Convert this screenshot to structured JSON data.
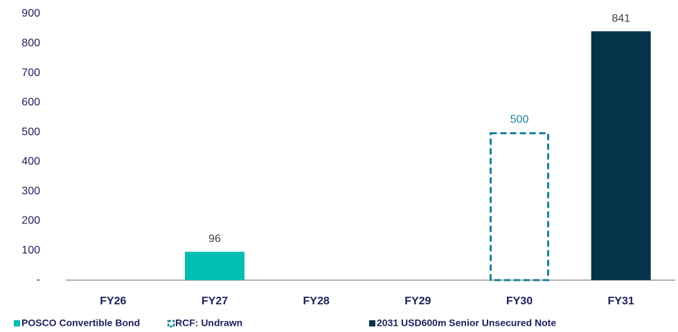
{
  "chart_data": {
    "type": "bar",
    "categories": [
      "FY26",
      "FY27",
      "FY28",
      "FY29",
      "FY30",
      "FY31"
    ],
    "series": [
      {
        "name": "POSCO Convertible Bond",
        "color": "#00bfb2",
        "values": [
          null,
          96,
          null,
          null,
          null,
          null
        ]
      },
      {
        "name": "RCF: Undrawn",
        "color": "#1a7f9a",
        "dashed": true,
        "values": [
          null,
          null,
          null,
          null,
          500,
          null
        ]
      },
      {
        "name": "2031 USD600m Senior Unsecured Note",
        "color": "#05334a",
        "values": [
          null,
          null,
          null,
          null,
          null,
          841
        ]
      }
    ],
    "ylim": [
      0,
      900
    ],
    "yticks": [
      {
        "value": 0,
        "label": "-"
      },
      100,
      200,
      300,
      400,
      500,
      600,
      700,
      800,
      900
    ],
    "grid": false,
    "legend": "bottom"
  }
}
